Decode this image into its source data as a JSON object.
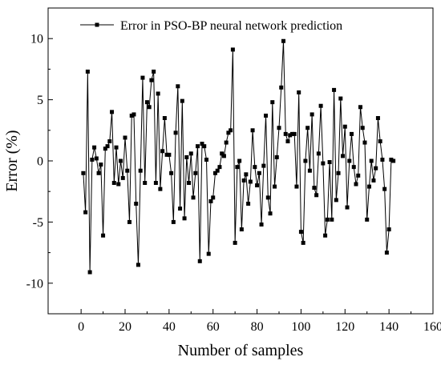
{
  "chart_data": {
    "type": "line",
    "xlabel": "Number of samples",
    "ylabel": "Error (%)",
    "xlim": [
      -15,
      160
    ],
    "ylim": [
      -12.5,
      12.5
    ],
    "x_ticks": [
      0,
      20,
      40,
      60,
      80,
      100,
      120,
      140,
      160
    ],
    "y_ticks": [
      -10,
      -5,
      0,
      5,
      10
    ],
    "legend_position": "top-right",
    "grid": false,
    "series": [
      {
        "name": "Error in PSO-BP neural network prediction",
        "color": "#000000",
        "marker": "square",
        "x": [
          1,
          2,
          3,
          4,
          5,
          6,
          7,
          8,
          9,
          10,
          11,
          12,
          13,
          14,
          15,
          16,
          17,
          18,
          19,
          20,
          21,
          22,
          23,
          24,
          25,
          26,
          27,
          28,
          29,
          30,
          31,
          32,
          33,
          34,
          35,
          36,
          37,
          38,
          39,
          40,
          41,
          42,
          43,
          44,
          45,
          46,
          47,
          48,
          49,
          50,
          51,
          52,
          53,
          54,
          55,
          56,
          57,
          58,
          59,
          60,
          61,
          62,
          63,
          64,
          65,
          66,
          67,
          68,
          69,
          70,
          71,
          72,
          73,
          74,
          75,
          76,
          77,
          78,
          79,
          80,
          81,
          82,
          83,
          84,
          85,
          86,
          87,
          88,
          89,
          90,
          91,
          92,
          93,
          94,
          95,
          96,
          97,
          98,
          99,
          100,
          101,
          102,
          103,
          104,
          105,
          106,
          107,
          108,
          109,
          110,
          111,
          112,
          113,
          114,
          115,
          116,
          117,
          118,
          119,
          120,
          121,
          122,
          123,
          124,
          125,
          126,
          127,
          128,
          129,
          130,
          131,
          132,
          133,
          134,
          135,
          136,
          137,
          138,
          139,
          140,
          141,
          142
        ],
        "y": [
          -1.0,
          -4.2,
          7.3,
          -9.1,
          0.1,
          1.1,
          0.2,
          -1.0,
          -0.3,
          -6.1,
          1.0,
          1.2,
          1.6,
          4.0,
          -1.8,
          1.1,
          -1.9,
          0.0,
          -1.4,
          1.9,
          -0.8,
          -5.0,
          3.7,
          3.8,
          -3.5,
          -8.5,
          -0.8,
          6.8,
          -1.8,
          4.8,
          4.4,
          6.6,
          7.3,
          -1.8,
          5.5,
          -2.3,
          0.8,
          3.5,
          0.5,
          0.5,
          -1.0,
          -5.0,
          2.3,
          6.1,
          -3.9,
          4.9,
          -4.7,
          0.3,
          -1.8,
          0.6,
          -3.0,
          -1.0,
          1.2,
          -8.2,
          1.4,
          1.2,
          0.1,
          -7.6,
          -3.3,
          -3.0,
          -1.0,
          -0.8,
          -0.5,
          0.6,
          0.4,
          1.5,
          2.3,
          2.5,
          9.1,
          -6.7,
          -0.5,
          0.0,
          -5.6,
          -1.6,
          -1.1,
          -3.5,
          -1.7,
          2.5,
          -0.5,
          -2.0,
          -1.0,
          -5.2,
          -0.4,
          3.7,
          -3.0,
          -4.3,
          4.8,
          -2.1,
          0.3,
          2.7,
          6.0,
          9.8,
          2.2,
          1.6,
          2.1,
          2.2,
          2.2,
          -2.1,
          5.6,
          -5.8,
          -6.7,
          0.0,
          2.7,
          -0.8,
          3.8,
          -2.2,
          -2.8,
          0.6,
          4.5,
          -0.2,
          -6.1,
          -4.8,
          -0.1,
          -4.8,
          5.8,
          -3.2,
          -1.0,
          5.1,
          0.4,
          2.8,
          -3.8,
          0.0,
          2.2,
          -0.5,
          -1.9,
          -1.2,
          4.4,
          2.7,
          1.5,
          -4.8,
          -2.1,
          0.0,
          -1.6,
          -0.6,
          3.5,
          1.6,
          0.1,
          -2.3,
          -7.5,
          -5.6,
          0.1,
          0.0
        ]
      }
    ]
  }
}
